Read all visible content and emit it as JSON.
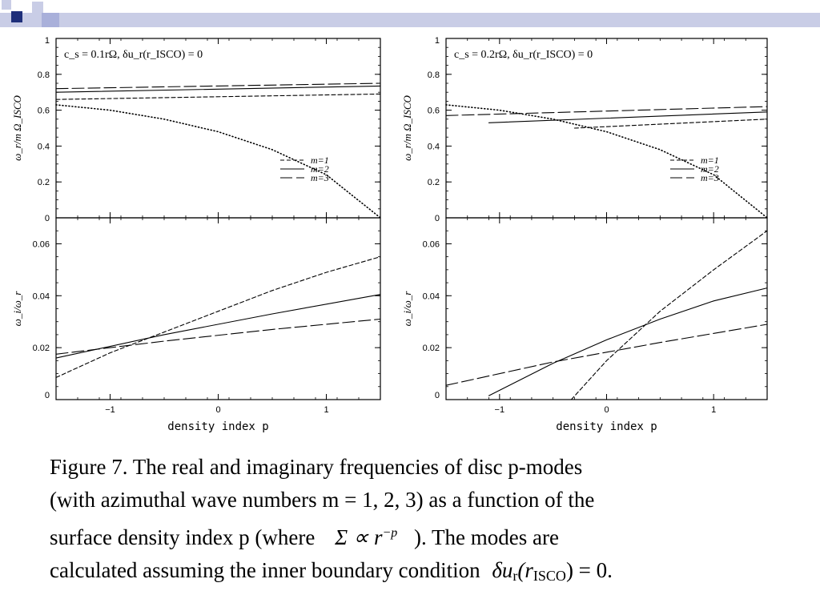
{
  "slide": {
    "caption_lines": [
      "Figure 7. The real and imaginary frequencies of disc p-modes",
      "(with azimuthal wave numbers m = 1, 2, 3) as a function of the",
      "surface density index p (where",
      "). The modes are",
      "calculated assuming the inner boundary condition"
    ],
    "formula_density": "Σ ∝ r",
    "formula_density_exp": "−p",
    "formula_bc_left": "δu",
    "formula_bc_sub": "r",
    "formula_bc_arg": "(r",
    "formula_bc_arg_sub": "ISCO",
    "formula_bc_right": ") = 0."
  },
  "chart_data": [
    {
      "type": "line",
      "panel": "top-left",
      "annotation": "c_s = 0.1rΩ, δu_r(r_ISCO) = 0",
      "ylabel": "ω_r/m Ω_ISCO",
      "xlabel": "",
      "xlim": [
        -1.5,
        1.5
      ],
      "ylim": [
        0,
        1
      ],
      "xticks": [
        -1,
        0,
        1
      ],
      "xtick_labels": [],
      "yticks": [
        0,
        0.2,
        0.4,
        0.6,
        0.8,
        1
      ],
      "ytick_labels": [
        "0",
        "0.2",
        "0.4",
        "0.6",
        "0.8",
        "1"
      ],
      "legend": {
        "placement": "lower-right",
        "entries": [
          "m=1",
          "m=2",
          "m=3"
        ]
      },
      "series": [
        {
          "name": "m=1",
          "style": "short-dash",
          "x": [
            -1.5,
            1.5
          ],
          "y": [
            0.66,
            0.69
          ]
        },
        {
          "name": "m=2",
          "style": "solid",
          "x": [
            -1.5,
            1.5
          ],
          "y": [
            0.7,
            0.735
          ]
        },
        {
          "name": "m=3",
          "style": "long-dash",
          "x": [
            -1.5,
            1.5
          ],
          "y": [
            0.72,
            0.75
          ]
        },
        {
          "style": "dotted",
          "x": [
            -1.5,
            -1,
            -0.5,
            0,
            0.5,
            1,
            1.5
          ],
          "y": [
            0.63,
            0.6,
            0.55,
            0.48,
            0.38,
            0.24,
            0
          ]
        }
      ]
    },
    {
      "type": "line",
      "panel": "top-right",
      "annotation": "c_s = 0.2rΩ, δu_r(r_ISCO) = 0",
      "ylabel": "ω_r/m Ω_ISCO",
      "xlabel": "",
      "xlim": [
        -1.5,
        1.5
      ],
      "ylim": [
        0,
        1
      ],
      "xticks": [
        -1,
        0,
        1
      ],
      "xtick_labels": [],
      "yticks": [
        0,
        0.2,
        0.4,
        0.6,
        0.8,
        1
      ],
      "ytick_labels": [
        "0",
        "0.2",
        "0.4",
        "0.6",
        "0.8",
        "1"
      ],
      "legend": {
        "placement": "lower-right",
        "entries": [
          "m=1",
          "m=2",
          "m=3"
        ]
      },
      "series": [
        {
          "name": "m=1",
          "style": "short-dash",
          "x": [
            -0.3,
            1.5
          ],
          "y": [
            0.5,
            0.55
          ]
        },
        {
          "name": "m=2",
          "style": "solid",
          "x": [
            -1.1,
            1.5
          ],
          "y": [
            0.53,
            0.59
          ]
        },
        {
          "name": "m=3",
          "style": "long-dash",
          "x": [
            -1.5,
            1.5
          ],
          "y": [
            0.57,
            0.62
          ]
        },
        {
          "style": "dotted",
          "x": [
            -1.5,
            -1,
            -0.5,
            0,
            0.5,
            1,
            1.5
          ],
          "y": [
            0.63,
            0.6,
            0.55,
            0.48,
            0.38,
            0.24,
            0
          ]
        }
      ]
    },
    {
      "type": "line",
      "panel": "bottom-left",
      "annotation": "",
      "ylabel": "ω_i/ω_r",
      "xlabel": "density index p",
      "xlim": [
        -1.5,
        1.5
      ],
      "ylim": [
        0,
        0.07
      ],
      "xticks": [
        -1,
        0,
        1
      ],
      "xtick_labels": [
        "−1",
        "0",
        "1"
      ],
      "yticks": [
        0,
        0.02,
        0.04,
        0.06
      ],
      "ytick_labels": [
        "0",
        "0.02",
        "0.04",
        "0.06"
      ],
      "legend": null,
      "series": [
        {
          "name": "m=1",
          "style": "short-dash",
          "x": [
            -1.5,
            -1,
            -0.5,
            0,
            0.5,
            1,
            1.5
          ],
          "y": [
            0.0085,
            0.018,
            0.026,
            0.034,
            0.042,
            0.049,
            0.055
          ]
        },
        {
          "name": "m=2",
          "style": "solid",
          "x": [
            -1.5,
            -0.5,
            0.5,
            1.5
          ],
          "y": [
            0.016,
            0.025,
            0.033,
            0.0405
          ]
        },
        {
          "name": "m=3",
          "style": "long-dash",
          "x": [
            -1.5,
            -0.5,
            0.5,
            1.5
          ],
          "y": [
            0.0175,
            0.0225,
            0.027,
            0.031
          ]
        }
      ]
    },
    {
      "type": "line",
      "panel": "bottom-right",
      "annotation": "",
      "ylabel": "ω_i/ω_r",
      "xlabel": "density index p",
      "xlim": [
        -1.5,
        1.5
      ],
      "ylim": [
        0,
        0.07
      ],
      "xticks": [
        -1,
        0,
        1
      ],
      "xtick_labels": [
        "−1",
        "0",
        "1"
      ],
      "yticks": [
        0,
        0.02,
        0.04,
        0.06
      ],
      "ytick_labels": [
        "0",
        "0.02",
        "0.04",
        "0.06"
      ],
      "legend": null,
      "series": [
        {
          "name": "m=1",
          "style": "short-dash",
          "x": [
            -0.33,
            0,
            0.5,
            1,
            1.5
          ],
          "y": [
            0,
            0.015,
            0.034,
            0.05,
            0.065
          ]
        },
        {
          "name": "m=2",
          "style": "solid",
          "x": [
            -1.1,
            -0.5,
            0,
            0.5,
            1,
            1.5
          ],
          "y": [
            0.0015,
            0.014,
            0.023,
            0.031,
            0.038,
            0.043
          ]
        },
        {
          "name": "m=3",
          "style": "long-dash",
          "x": [
            -1.5,
            -0.5,
            0.5,
            1.5
          ],
          "y": [
            0.0055,
            0.0145,
            0.022,
            0.029
          ]
        }
      ]
    }
  ],
  "colors": {
    "deco_bar": "#c9cde6",
    "deco_navy": "#1f2f7a",
    "deco_light": "#a9b0da",
    "ink": "#000000"
  }
}
